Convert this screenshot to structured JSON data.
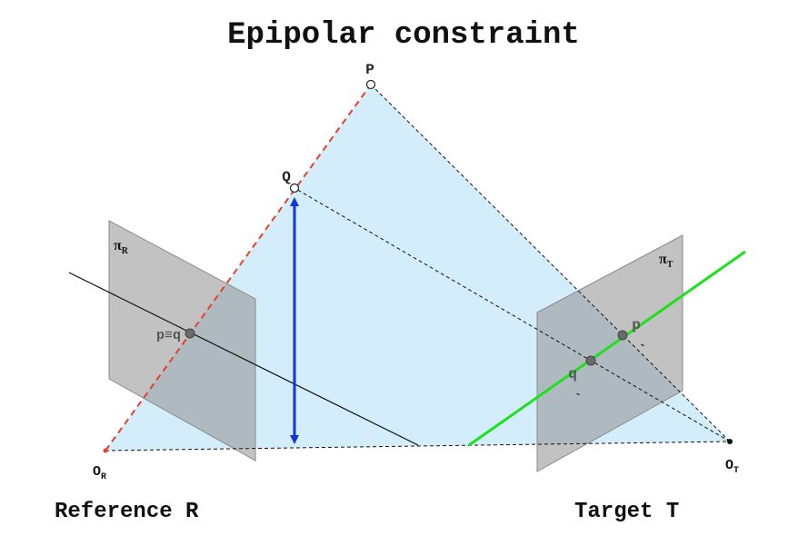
{
  "title": "Epipolar constraint",
  "points": {
    "P": "P",
    "Q": "Q",
    "O_R": "O",
    "O_R_sub": "R",
    "O_T": "O",
    "O_T_sub": "T",
    "pq": "p≡q",
    "p_prime": "p",
    "q_prime": "q",
    "prime_mark": "`"
  },
  "planes": {
    "reference": {
      "symbol": "π",
      "sub": "R"
    },
    "target": {
      "symbol": "π",
      "sub": "T"
    }
  },
  "captions": {
    "reference": "Reference R",
    "target": "Target T"
  },
  "colors": {
    "epipolar_plane": "#d4edfb",
    "image_plane": "#8f8f8f",
    "optical_ray": "#e8402a",
    "depth_arrow": "#1035d8",
    "epipolar_line": "#1ee01e",
    "point_fill": "#6a6a6a"
  }
}
